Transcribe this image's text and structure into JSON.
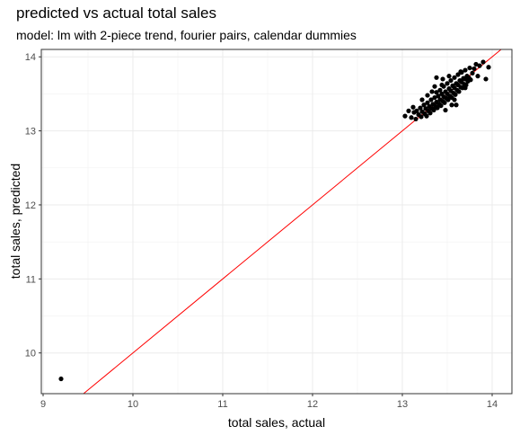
{
  "chart_data": {
    "type": "scatter",
    "title": "predicted vs actual total sales",
    "subtitle": "model: lm with 2-piece trend, fourier pairs, calendar dummies",
    "xlabel": "total sales, actual",
    "ylabel": "total sales, predicted",
    "xlim": [
      8.98,
      14.22
    ],
    "ylim": [
      9.45,
      14.1
    ],
    "xticks": [
      9,
      10,
      11,
      12,
      13,
      14
    ],
    "yticks": [
      10,
      11,
      12,
      13,
      14
    ],
    "grid": true,
    "reference_line": {
      "type": "identity",
      "slope": 1,
      "intercept": 0,
      "color": "#ff0000"
    },
    "point_color": "#000000",
    "points": [
      [
        9.2,
        9.65
      ],
      [
        13.03,
        13.2
      ],
      [
        13.07,
        13.27
      ],
      [
        13.1,
        13.18
      ],
      [
        13.13,
        13.25
      ],
      [
        13.15,
        13.16
      ],
      [
        13.16,
        13.27
      ],
      [
        13.18,
        13.22
      ],
      [
        13.2,
        13.31
      ],
      [
        13.21,
        13.19
      ],
      [
        13.22,
        13.26
      ],
      [
        13.24,
        13.35
      ],
      [
        13.25,
        13.23
      ],
      [
        13.26,
        13.3
      ],
      [
        13.27,
        13.2
      ],
      [
        13.28,
        13.38
      ],
      [
        13.29,
        13.27
      ],
      [
        13.3,
        13.33
      ],
      [
        13.31,
        13.24
      ],
      [
        13.32,
        13.42
      ],
      [
        13.33,
        13.3
      ],
      [
        13.34,
        13.36
      ],
      [
        13.35,
        13.28
      ],
      [
        13.36,
        13.45
      ],
      [
        13.37,
        13.33
      ],
      [
        13.38,
        13.39
      ],
      [
        13.38,
        13.52
      ],
      [
        13.39,
        13.31
      ],
      [
        13.4,
        13.47
      ],
      [
        13.41,
        13.36
      ],
      [
        13.42,
        13.42
      ],
      [
        13.42,
        13.55
      ],
      [
        13.43,
        13.34
      ],
      [
        13.44,
        13.5
      ],
      [
        13.45,
        13.4
      ],
      [
        13.46,
        13.46
      ],
      [
        13.46,
        13.6
      ],
      [
        13.47,
        13.38
      ],
      [
        13.48,
        13.53
      ],
      [
        13.49,
        13.44
      ],
      [
        13.5,
        13.5
      ],
      [
        13.5,
        13.64
      ],
      [
        13.51,
        13.42
      ],
      [
        13.52,
        13.57
      ],
      [
        13.53,
        13.47
      ],
      [
        13.54,
        13.54
      ],
      [
        13.54,
        13.68
      ],
      [
        13.55,
        13.45
      ],
      [
        13.56,
        13.61
      ],
      [
        13.57,
        13.51
      ],
      [
        13.58,
        13.58
      ],
      [
        13.58,
        13.72
      ],
      [
        13.59,
        13.49
      ],
      [
        13.6,
        13.64
      ],
      [
        13.61,
        13.55
      ],
      [
        13.62,
        13.62
      ],
      [
        13.62,
        13.76
      ],
      [
        13.63,
        13.53
      ],
      [
        13.64,
        13.68
      ],
      [
        13.65,
        13.59
      ],
      [
        13.66,
        13.66
      ],
      [
        13.66,
        13.79
      ],
      [
        13.67,
        13.58
      ],
      [
        13.68,
        13.71
      ],
      [
        13.69,
        13.63
      ],
      [
        13.7,
        13.7
      ],
      [
        13.7,
        13.82
      ],
      [
        13.71,
        13.62
      ],
      [
        13.72,
        13.74
      ],
      [
        13.73,
        13.67
      ],
      [
        13.74,
        13.72
      ],
      [
        13.75,
        13.85
      ],
      [
        13.76,
        13.69
      ],
      [
        13.78,
        13.78
      ],
      [
        13.8,
        13.84
      ],
      [
        13.82,
        13.9
      ],
      [
        13.84,
        13.74
      ],
      [
        13.86,
        13.88
      ],
      [
        13.9,
        13.93
      ],
      [
        13.93,
        13.7
      ],
      [
        13.96,
        13.86
      ],
      [
        13.38,
        13.72
      ],
      [
        13.45,
        13.7
      ],
      [
        13.55,
        13.35
      ],
      [
        13.6,
        13.35
      ],
      [
        13.48,
        13.28
      ],
      [
        13.36,
        13.6
      ],
      [
        13.28,
        13.48
      ],
      [
        13.22,
        13.42
      ],
      [
        13.12,
        13.32
      ],
      [
        13.65,
        13.8
      ],
      [
        13.7,
        13.58
      ],
      [
        13.52,
        13.74
      ],
      [
        13.58,
        13.42
      ],
      [
        13.44,
        13.62
      ],
      [
        13.33,
        13.53
      ]
    ]
  }
}
